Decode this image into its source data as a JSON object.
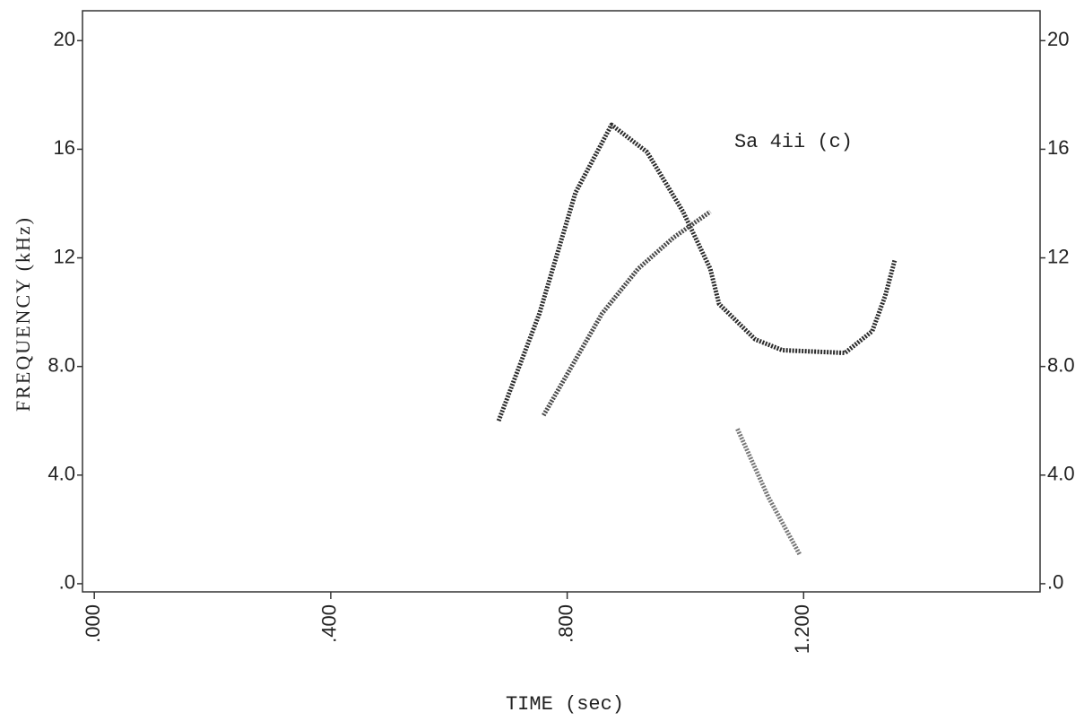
{
  "chart_data": {
    "type": "line",
    "annotation": "Sa 4ii (c)",
    "x_label": "TIME (sec)",
    "y_label": "FREQUENCY (kHz)",
    "xlim": [
      -0.02,
      1.6
    ],
    "ylim": [
      -0.3,
      21.1
    ],
    "y2lim": [
      -0.3,
      21.1
    ],
    "xticks": [
      {
        "value": 0,
        "label": ".000"
      },
      {
        "value": 0.4,
        "label": ".400"
      },
      {
        "value": 0.8,
        "label": ".800"
      },
      {
        "value": 1.2,
        "label": "1.200"
      }
    ],
    "yticks": [
      {
        "value": 0,
        "label": ".0"
      },
      {
        "value": 4,
        "label": "4.0"
      },
      {
        "value": 8,
        "label": "8.0"
      },
      12,
      16,
      20
    ],
    "y2ticks": [
      {
        "value": 0,
        "label": ".0"
      },
      {
        "value": 4,
        "label": "4.0"
      },
      {
        "value": 8,
        "label": "8.0"
      },
      12,
      16,
      20
    ],
    "series": [
      {
        "color": "#2a2a2a",
        "x": [
          0.684,
          0.753,
          0.814,
          0.875,
          0.935,
          0.996,
          1.042,
          1.057,
          1.118,
          1.164,
          1.27,
          1.316,
          1.338,
          1.354
        ],
        "values": [
          6.0,
          9.95,
          14.4,
          16.9,
          15.9,
          13.7,
          11.6,
          10.3,
          9.0,
          8.6,
          8.5,
          9.3,
          10.6,
          11.9
        ]
      },
      {
        "color": "#4a4a4a",
        "x": [
          0.76,
          0.859,
          0.92,
          0.98,
          1.042
        ],
        "values": [
          6.2,
          9.95,
          11.6,
          12.75,
          13.7
        ]
      },
      {
        "color": "#777777",
        "x": [
          1.088,
          1.14,
          1.194
        ],
        "values": [
          5.7,
          3.2,
          1.05
        ]
      }
    ]
  }
}
